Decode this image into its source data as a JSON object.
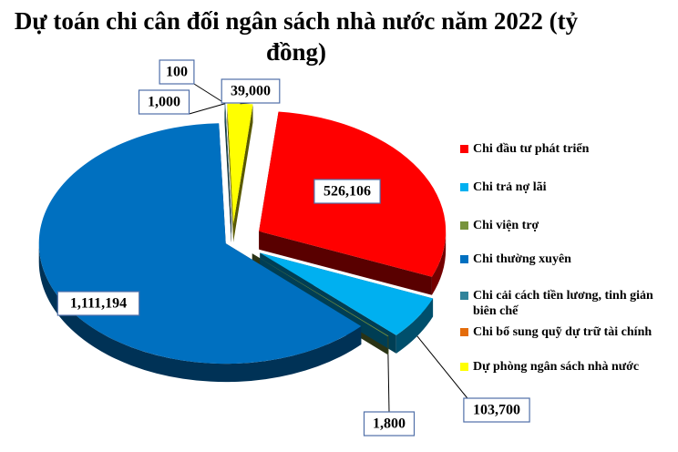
{
  "chart_data": {
    "type": "pie",
    "title": "Dự toán chi cân đối ngân sách nhà nước năm 2022 (tỷ đồng)",
    "legend_position": "right",
    "slices": [
      {
        "name": "Chi đầu tư phát triển",
        "value": 526106,
        "label": "526,106",
        "color": "#ff0000"
      },
      {
        "name": "Chi trả nợ lãi",
        "value": 103700,
        "label": "103,700",
        "color": "#00b0f0"
      },
      {
        "name": "Chi viện trợ",
        "value": 1800,
        "label": "1,800",
        "color": "#77933c"
      },
      {
        "name": "Chi thường xuyên",
        "value": 1111194,
        "label": "1,111,194",
        "color": "#0070c0"
      },
      {
        "name": "Chi cải cách tiền lương, tinh giản biên chế",
        "value": 1000,
        "label": "1,000",
        "color": "#31849b"
      },
      {
        "name": "Chi bổ sung quỹ dự trữ tài chính",
        "value": 100,
        "label": "100",
        "color": "#e46c0a"
      },
      {
        "name": "Dự phòng ngân sách nhà nước",
        "value": 39000,
        "label": "39,000",
        "color": "#ffff00"
      }
    ]
  }
}
